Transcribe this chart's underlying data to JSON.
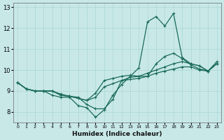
{
  "xlabel": "Humidex (Indice chaleur)",
  "ylabel": "",
  "bg_color": "#c8e8e8",
  "grid_color": "#aad4d4",
  "line_color": "#1a6b5a",
  "xlim": [
    -0.5,
    23.5
  ],
  "ylim": [
    7.5,
    13.2
  ],
  "xticks": [
    0,
    1,
    2,
    3,
    4,
    5,
    6,
    7,
    8,
    9,
    10,
    11,
    12,
    13,
    14,
    15,
    16,
    17,
    18,
    19,
    20,
    21,
    22,
    23
  ],
  "yticks": [
    8,
    9,
    10,
    11,
    12,
    13
  ],
  "lines": [
    {
      "x": [
        0,
        1,
        2,
        3,
        4,
        5,
        6,
        7,
        8,
        9,
        10,
        11,
        12,
        13,
        14,
        15,
        16,
        17,
        18,
        19,
        20,
        21,
        22,
        23
      ],
      "y": [
        9.4,
        9.1,
        9.0,
        9.0,
        8.8,
        8.7,
        8.7,
        8.3,
        8.2,
        7.75,
        8.1,
        8.8,
        9.3,
        9.7,
        10.1,
        12.3,
        12.55,
        12.1,
        12.7,
        10.6,
        10.3,
        10.2,
        9.95,
        10.4
      ]
    },
    {
      "x": [
        0,
        1,
        2,
        3,
        4,
        5,
        6,
        7,
        8,
        9,
        10,
        11,
        12,
        13,
        14,
        15,
        16,
        17,
        18,
        19,
        20,
        21,
        22,
        23
      ],
      "y": [
        9.4,
        9.1,
        9.0,
        9.0,
        9.0,
        8.8,
        8.75,
        8.65,
        8.55,
        8.9,
        9.5,
        9.6,
        9.7,
        9.75,
        9.7,
        9.85,
        10.0,
        10.15,
        10.3,
        10.4,
        10.3,
        10.2,
        9.95,
        10.3
      ]
    },
    {
      "x": [
        0,
        1,
        2,
        3,
        4,
        5,
        6,
        7,
        8,
        9,
        10,
        11,
        12,
        13,
        14,
        15,
        16,
        17,
        18,
        19,
        20,
        21,
        22,
        23
      ],
      "y": [
        9.4,
        9.1,
        9.0,
        9.0,
        9.0,
        8.8,
        8.75,
        8.65,
        8.55,
        8.7,
        9.2,
        9.35,
        9.5,
        9.55,
        9.6,
        9.7,
        9.85,
        9.95,
        10.05,
        10.15,
        10.15,
        10.0,
        9.95,
        10.3
      ]
    },
    {
      "x": [
        0,
        1,
        2,
        3,
        4,
        5,
        6,
        7,
        8,
        9,
        10,
        11,
        12,
        13,
        14,
        15,
        16,
        17,
        18,
        19,
        20,
        21,
        22,
        23
      ],
      "y": [
        9.4,
        9.1,
        9.0,
        9.0,
        9.0,
        8.85,
        8.75,
        8.7,
        8.35,
        8.15,
        8.15,
        8.6,
        9.5,
        9.65,
        9.7,
        9.7,
        10.3,
        10.65,
        10.8,
        10.55,
        10.25,
        10.05,
        9.95,
        10.3
      ]
    }
  ]
}
